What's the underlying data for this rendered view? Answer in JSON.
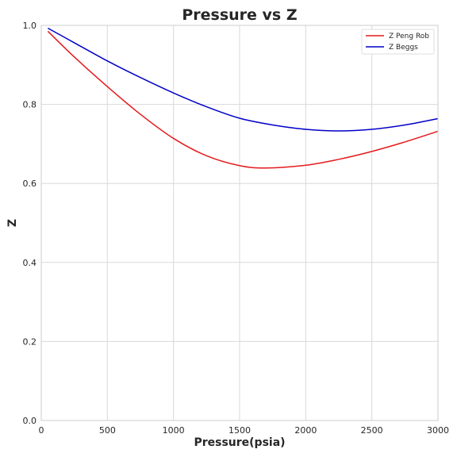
{
  "chart_data": {
    "type": "line",
    "title": "Pressure vs Z",
    "xlabel": "Pressure(psia)",
    "ylabel": "Z",
    "xlim": [
      0,
      3000
    ],
    "ylim": [
      0.0,
      1.0
    ],
    "xticks": [
      0,
      500,
      1000,
      1500,
      2000,
      2500,
      3000
    ],
    "yticks": [
      0.0,
      0.2,
      0.4,
      0.6,
      0.8,
      1.0
    ],
    "xtick_labels": [
      "0",
      "500",
      "1000",
      "1500",
      "2000",
      "2500",
      "3000"
    ],
    "ytick_labels": [
      "0.0",
      "0.2",
      "0.4",
      "0.6",
      "0.8",
      "1.0"
    ],
    "grid": true,
    "legend_position": "top-right",
    "series": [
      {
        "name": "Z Peng Rob",
        "color": "#e41a1c",
        "x": [
          50,
          250,
          500,
          750,
          1000,
          1250,
          1500,
          1700,
          2000,
          2250,
          2500,
          2750,
          3000
        ],
        "y": [
          0.985,
          0.92,
          0.845,
          0.775,
          0.714,
          0.67,
          0.645,
          0.639,
          0.646,
          0.661,
          0.681,
          0.705,
          0.732
        ]
      },
      {
        "name": "Z Beggs",
        "color": "#0000c8",
        "x": [
          50,
          250,
          500,
          750,
          1000,
          1250,
          1500,
          1750,
          2000,
          2250,
          2500,
          2750,
          3000
        ],
        "y": [
          0.993,
          0.956,
          0.91,
          0.868,
          0.829,
          0.794,
          0.765,
          0.748,
          0.737,
          0.733,
          0.737,
          0.748,
          0.764
        ]
      }
    ]
  }
}
